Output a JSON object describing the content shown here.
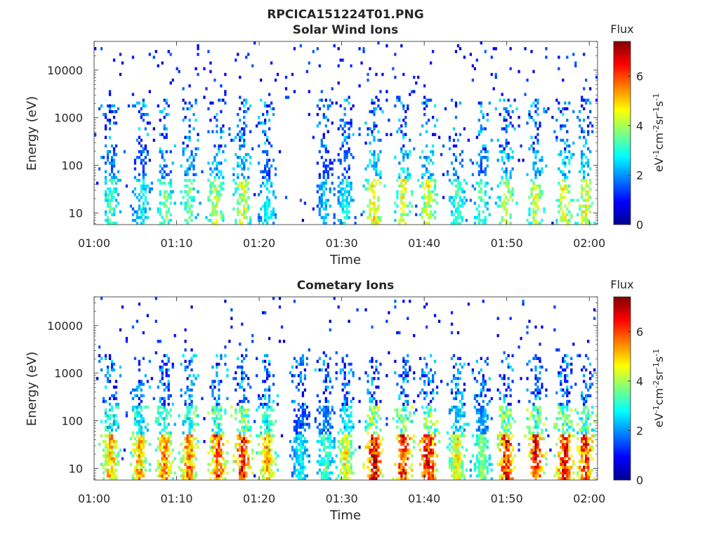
{
  "figure": {
    "title": "RPCICA151224T01.PNG"
  },
  "chart_data": [
    {
      "type": "heatmap",
      "title": "Solar Wind Ions",
      "xlabel": "Time",
      "ylabel": "Energy (eV)",
      "x_range_minutes": [
        0,
        61
      ],
      "x_ticks": [
        "01:00",
        "01:10",
        "01:20",
        "01:30",
        "01:40",
        "01:50",
        "02:00"
      ],
      "y_scale": "log",
      "y_range_ev": [
        5.7,
        40000
      ],
      "y_ticks": [
        "10",
        "100",
        "1000",
        "10000"
      ],
      "colorbar": {
        "label": "Flux",
        "units": "eV",
        "units_text": "eV-1cm-2sr-1s-1",
        "range": [
          0,
          7.4
        ],
        "ticks": [
          "0",
          "2",
          "4",
          "6"
        ],
        "colormap": "jet"
      },
      "bursts": [
        {
          "t": 2.0,
          "f": 3.5
        },
        {
          "t": 5.8,
          "f": 3.0
        },
        {
          "t": 8.6,
          "f": 3.8
        },
        {
          "t": 11.5,
          "f": 3.8
        },
        {
          "t": 14.8,
          "f": 4.5
        },
        {
          "t": 18.0,
          "f": 4.5
        },
        {
          "t": 21.0,
          "f": 3.0
        },
        {
          "t": 28.0,
          "f": 2.5
        },
        {
          "t": 30.5,
          "f": 3.0
        },
        {
          "t": 34.0,
          "f": 5.0
        },
        {
          "t": 37.5,
          "f": 4.8
        },
        {
          "t": 40.5,
          "f": 4.8
        },
        {
          "t": 44.0,
          "f": 3.5
        },
        {
          "t": 47.0,
          "f": 3.5
        },
        {
          "t": 50.0,
          "f": 4.5
        },
        {
          "t": 53.5,
          "f": 4.5
        },
        {
          "t": 57.0,
          "f": 4.8
        },
        {
          "t": 59.5,
          "f": 4.8
        }
      ]
    },
    {
      "type": "heatmap",
      "title": "Cometary Ions",
      "xlabel": "Time",
      "ylabel": "Energy (eV)",
      "x_range_minutes": [
        0,
        61
      ],
      "x_ticks": [
        "01:00",
        "01:10",
        "01:20",
        "01:30",
        "01:40",
        "01:50",
        "02:00"
      ],
      "y_scale": "log",
      "y_range_ev": [
        5.7,
        40000
      ],
      "y_ticks": [
        "10",
        "100",
        "1000",
        "10000"
      ],
      "colorbar": {
        "label": "Flux",
        "units": "eV",
        "units_text": "eV-1cm-2sr-1s-1",
        "range": [
          0,
          7.4
        ],
        "ticks": [
          "0",
          "2",
          "4",
          "6"
        ],
        "colormap": "jet"
      },
      "bursts": [
        {
          "t": 2.0,
          "f": 5.5
        },
        {
          "t": 5.5,
          "f": 5.5
        },
        {
          "t": 8.5,
          "f": 5.8
        },
        {
          "t": 11.5,
          "f": 6.0
        },
        {
          "t": 15.0,
          "f": 6.5
        },
        {
          "t": 18.0,
          "f": 6.8
        },
        {
          "t": 21.0,
          "f": 5.5
        },
        {
          "t": 25.0,
          "f": 3.0
        },
        {
          "t": 28.0,
          "f": 3.5
        },
        {
          "t": 30.5,
          "f": 5.0
        },
        {
          "t": 34.0,
          "f": 7.2
        },
        {
          "t": 37.5,
          "f": 6.8
        },
        {
          "t": 40.5,
          "f": 7.0
        },
        {
          "t": 44.0,
          "f": 5.0
        },
        {
          "t": 47.0,
          "f": 4.0
        },
        {
          "t": 50.0,
          "f": 6.8
        },
        {
          "t": 53.5,
          "f": 6.8
        },
        {
          "t": 57.0,
          "f": 6.8
        },
        {
          "t": 59.5,
          "f": 6.5
        }
      ]
    }
  ]
}
